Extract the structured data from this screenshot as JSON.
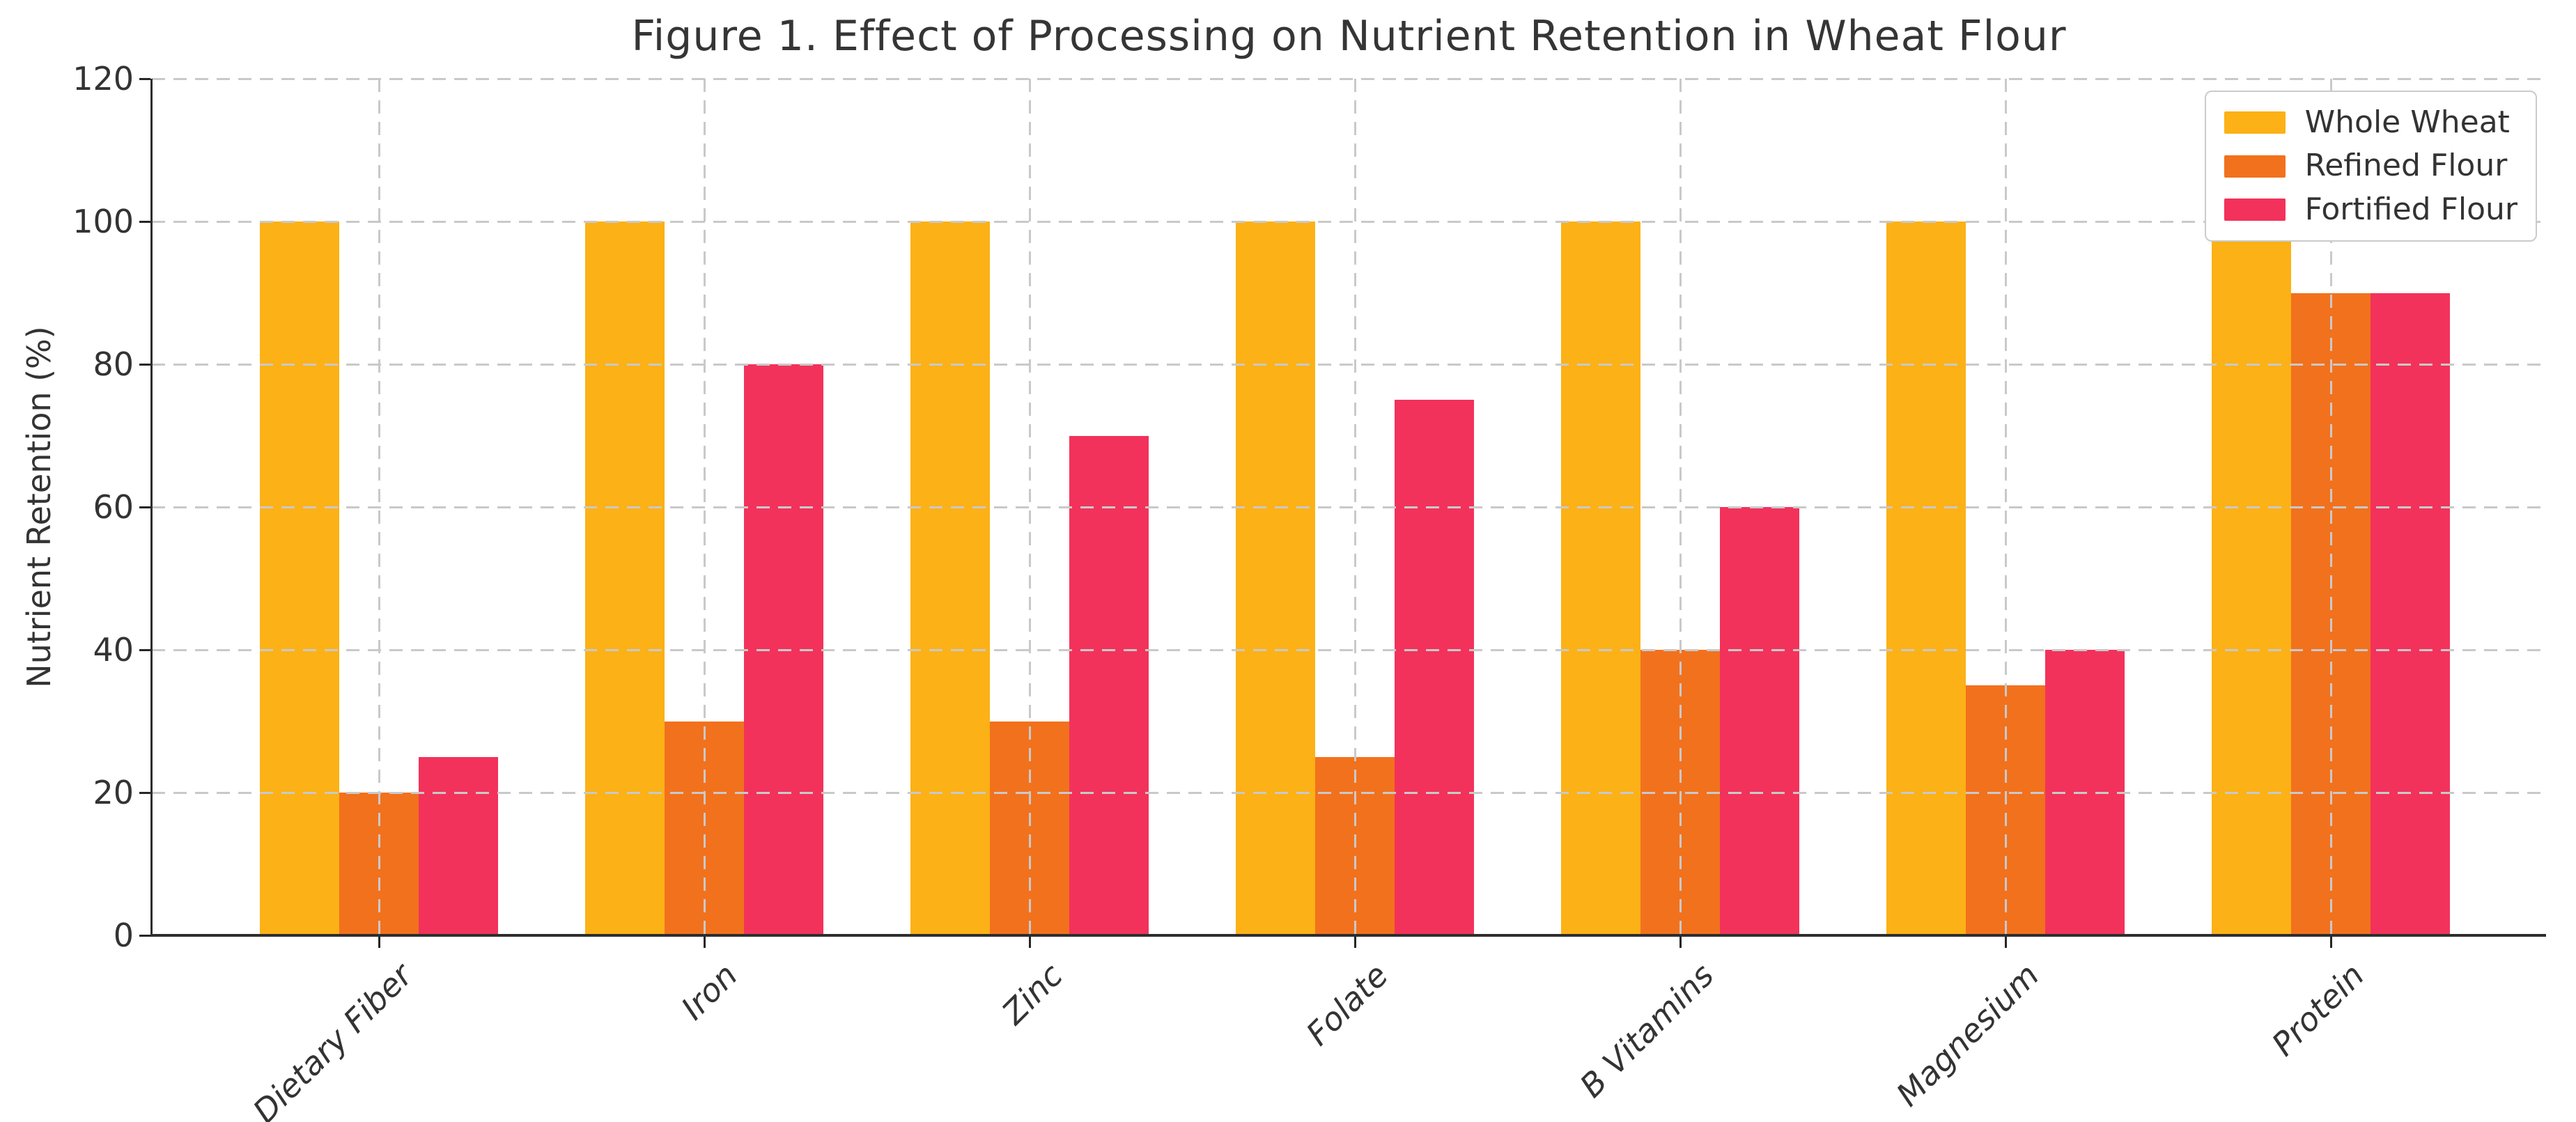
{
  "figure": {
    "background": "#ffffff"
  },
  "chart_data": {
    "type": "bar",
    "title": "Figure 1. Effect of Processing on Nutrient Retention in Wheat Flour",
    "xlabel": "",
    "ylabel": "Nutrient Retention (%)",
    "categories": [
      "Dietary Fiber",
      "Iron",
      "Zinc",
      "Folate",
      "B Vitamins",
      "Magnesium",
      "Protein"
    ],
    "series": [
      {
        "name": "Whole Wheat",
        "color": "#FCB116",
        "values": [
          100,
          100,
          100,
          100,
          100,
          100,
          100
        ]
      },
      {
        "name": "Refined Flour",
        "color": "#F2711D",
        "values": [
          20,
          30,
          30,
          25,
          40,
          35,
          90
        ]
      },
      {
        "name": "Fortified Flour",
        "color": "#F2325B",
        "values": [
          25,
          80,
          70,
          75,
          60,
          40,
          90
        ]
      }
    ],
    "ylim": [
      0,
      120
    ],
    "yticks": [
      0,
      20,
      40,
      60,
      80,
      100,
      120
    ],
    "grid": true,
    "grid_style": "dashed",
    "grid_color": "#c9c9c9",
    "axis_color": "#2e2e2e",
    "text_color": "#333333",
    "legend": {
      "position": "upper right",
      "labels": [
        "Whole Wheat",
        "Refined Flour",
        "Fortified Flour"
      ]
    }
  }
}
